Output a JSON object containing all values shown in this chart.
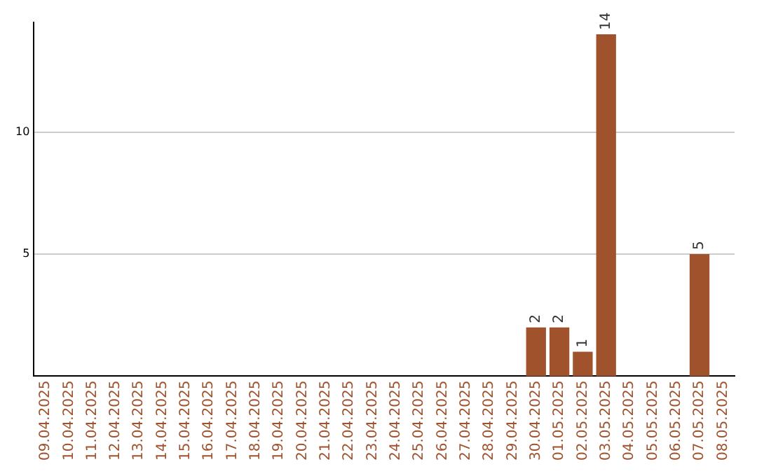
{
  "chart_data": {
    "type": "bar",
    "categories": [
      "09.04.2025",
      "10.04.2025",
      "11.04.2025",
      "12.04.2025",
      "13.04.2025",
      "14.04.2025",
      "15.04.2025",
      "16.04.2025",
      "17.04.2025",
      "18.04.2025",
      "19.04.2025",
      "20.04.2025",
      "21.04.2025",
      "22.04.2025",
      "23.04.2025",
      "24.04.2025",
      "25.04.2025",
      "26.04.2025",
      "27.04.2025",
      "28.04.2025",
      "29.04.2025",
      "30.04.2025",
      "01.05.2025",
      "02.05.2025",
      "03.05.2025",
      "04.05.2025",
      "05.05.2025",
      "06.05.2025",
      "07.05.2025",
      "08.05.2025"
    ],
    "values": [
      0,
      0,
      0,
      0,
      0,
      0,
      0,
      0,
      0,
      0,
      0,
      0,
      0,
      0,
      0,
      0,
      0,
      0,
      0,
      0,
      0,
      2,
      2,
      1,
      14,
      0,
      0,
      0,
      5,
      0
    ],
    "value_labels": [
      null,
      null,
      null,
      null,
      null,
      null,
      null,
      null,
      null,
      null,
      null,
      null,
      null,
      null,
      null,
      null,
      null,
      null,
      null,
      null,
      null,
      "2",
      "2",
      "1",
      "14",
      null,
      null,
      null,
      "5",
      null
    ],
    "color": "#a0522d",
    "ylim": [
      0,
      14.5
    ],
    "yticks": [
      5,
      10
    ],
    "grid": "y",
    "legend": false
  }
}
